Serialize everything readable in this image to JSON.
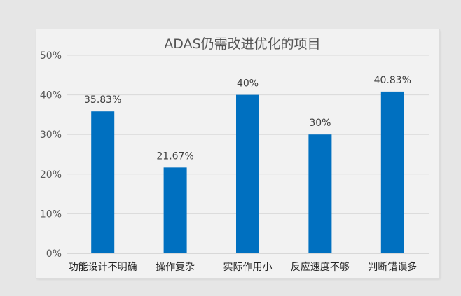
{
  "chart_data": {
    "type": "bar",
    "title": "ADAS仍需改进优化的项目",
    "categories": [
      "功能设计不明确",
      "操作复杂",
      "实际作用小",
      "反应速度不够",
      "判断错误多"
    ],
    "values": [
      35.83,
      21.67,
      40,
      30,
      40.83
    ],
    "data_labels": [
      "35.83%",
      "21.67%",
      "40%",
      "30%",
      "40.83%"
    ],
    "ylim": [
      0,
      50
    ],
    "yticks": [
      "0%",
      "10%",
      "20%",
      "30%",
      "40%",
      "50%"
    ],
    "grid": true,
    "xlabel": "",
    "ylabel": "",
    "bar_color": "#0070c0"
  }
}
